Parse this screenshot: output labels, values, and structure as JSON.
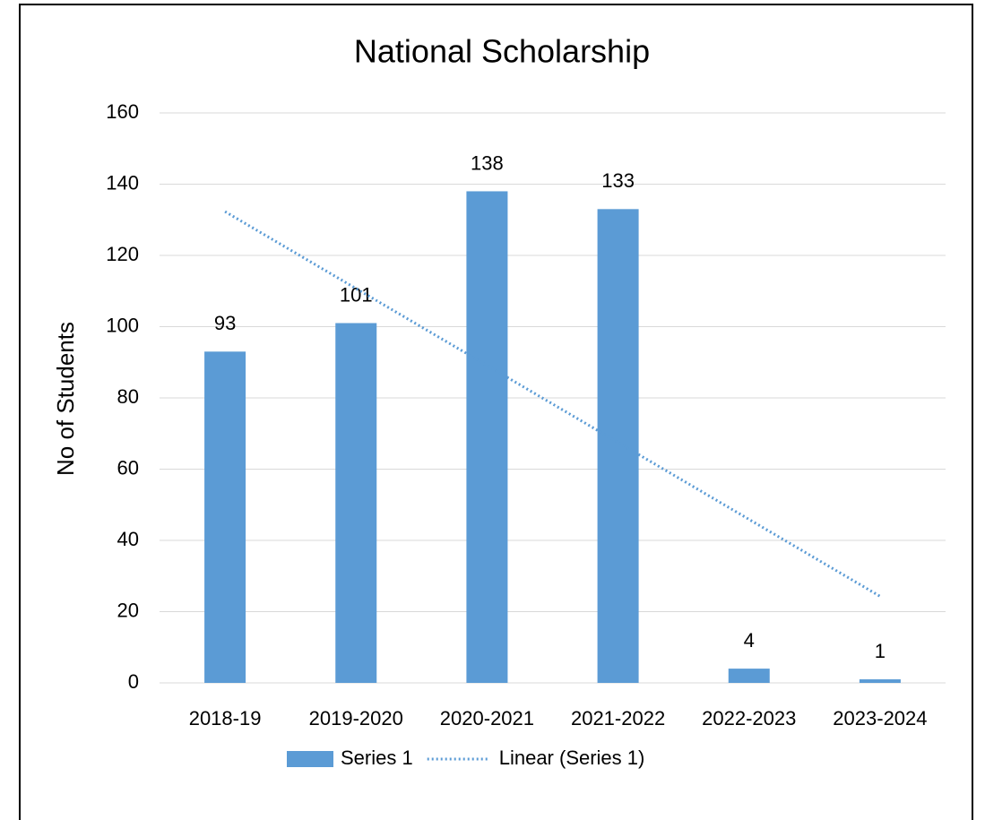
{
  "chart_data": {
    "type": "bar",
    "title": "National Scholarship",
    "y_label": "No of Students",
    "categories": [
      "2018-19",
      "2019-2020",
      "2020-2021",
      "2021-2022",
      "2022-2023",
      "2023-2024"
    ],
    "series": [
      {
        "name": "Series 1",
        "color": "#5b9bd5",
        "values": [
          93,
          101,
          138,
          133,
          4,
          1
        ]
      },
      {
        "name": "Linear (Series 1)",
        "type": "line",
        "style": "dotted",
        "color": "#5b9bd5",
        "values": [
          132.3,
          110.7,
          89.1,
          67.5,
          45.9,
          24.3
        ]
      }
    ],
    "data_labels": true,
    "ylim": [
      0,
      160
    ],
    "yticks": [
      0,
      20,
      40,
      60,
      80,
      100,
      120,
      140,
      160
    ],
    "grid": true,
    "legend": "bottom"
  }
}
